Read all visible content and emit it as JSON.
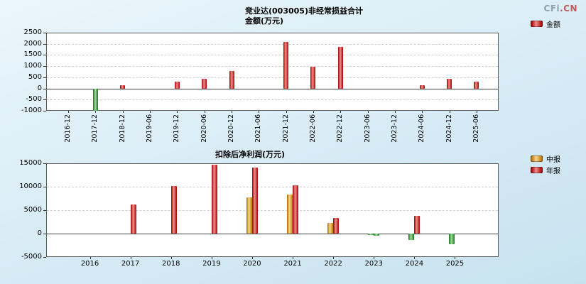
{
  "page": {
    "logo": {
      "text_gray": "CFi",
      "text_red": ".CN"
    },
    "main_title": "竞业达(003005)非经常损益合计"
  },
  "chart_data": [
    {
      "type": "bar",
      "title": "金额(万元)",
      "categories": [
        "2016-12",
        "2017-12",
        "2018-12",
        "2019-06",
        "2019-12",
        "2020-06",
        "2020-12",
        "2021-06",
        "2021-12",
        "2022-06",
        "2022-12",
        "2023-06",
        "2023-12",
        "2024-06",
        "2024-12",
        "2025-06"
      ],
      "series": [
        {
          "name": "金额",
          "color": "#e60000",
          "values": [
            null,
            -1000,
            160,
            null,
            300,
            430,
            790,
            null,
            2100,
            970,
            1870,
            null,
            null,
            130,
            440,
            300
          ]
        }
      ],
      "negative_color": "#22a822",
      "ylim": [
        -1000,
        2500
      ],
      "yticks": [
        2500,
        2000,
        1500,
        1000,
        500,
        0,
        -500,
        -1000
      ],
      "grid": true,
      "legend_position": "top-right",
      "xlabel": "",
      "ylabel": ""
    },
    {
      "type": "bar",
      "title": "扣除后净利润(万元)",
      "categories": [
        "2016",
        "2017",
        "2018",
        "2019",
        "2020",
        "2021",
        "2022",
        "2023",
        "2024",
        "2025"
      ],
      "series": [
        {
          "name": "中报",
          "color": "#ffa200",
          "values": [
            null,
            null,
            null,
            null,
            7700,
            8300,
            2300,
            -300,
            -1400,
            -2300
          ]
        },
        {
          "name": "年报",
          "color": "#e60000",
          "values": [
            null,
            6200,
            10200,
            14700,
            14100,
            10300,
            3400,
            -500,
            3800,
            null
          ]
        }
      ],
      "negative_color": "#22a822",
      "ylim": [
        -5000,
        15000
      ],
      "yticks": [
        15000,
        10000,
        5000,
        0,
        -5000
      ],
      "grid": true,
      "legend_position": "right",
      "xlabel": "",
      "ylabel": ""
    }
  ]
}
